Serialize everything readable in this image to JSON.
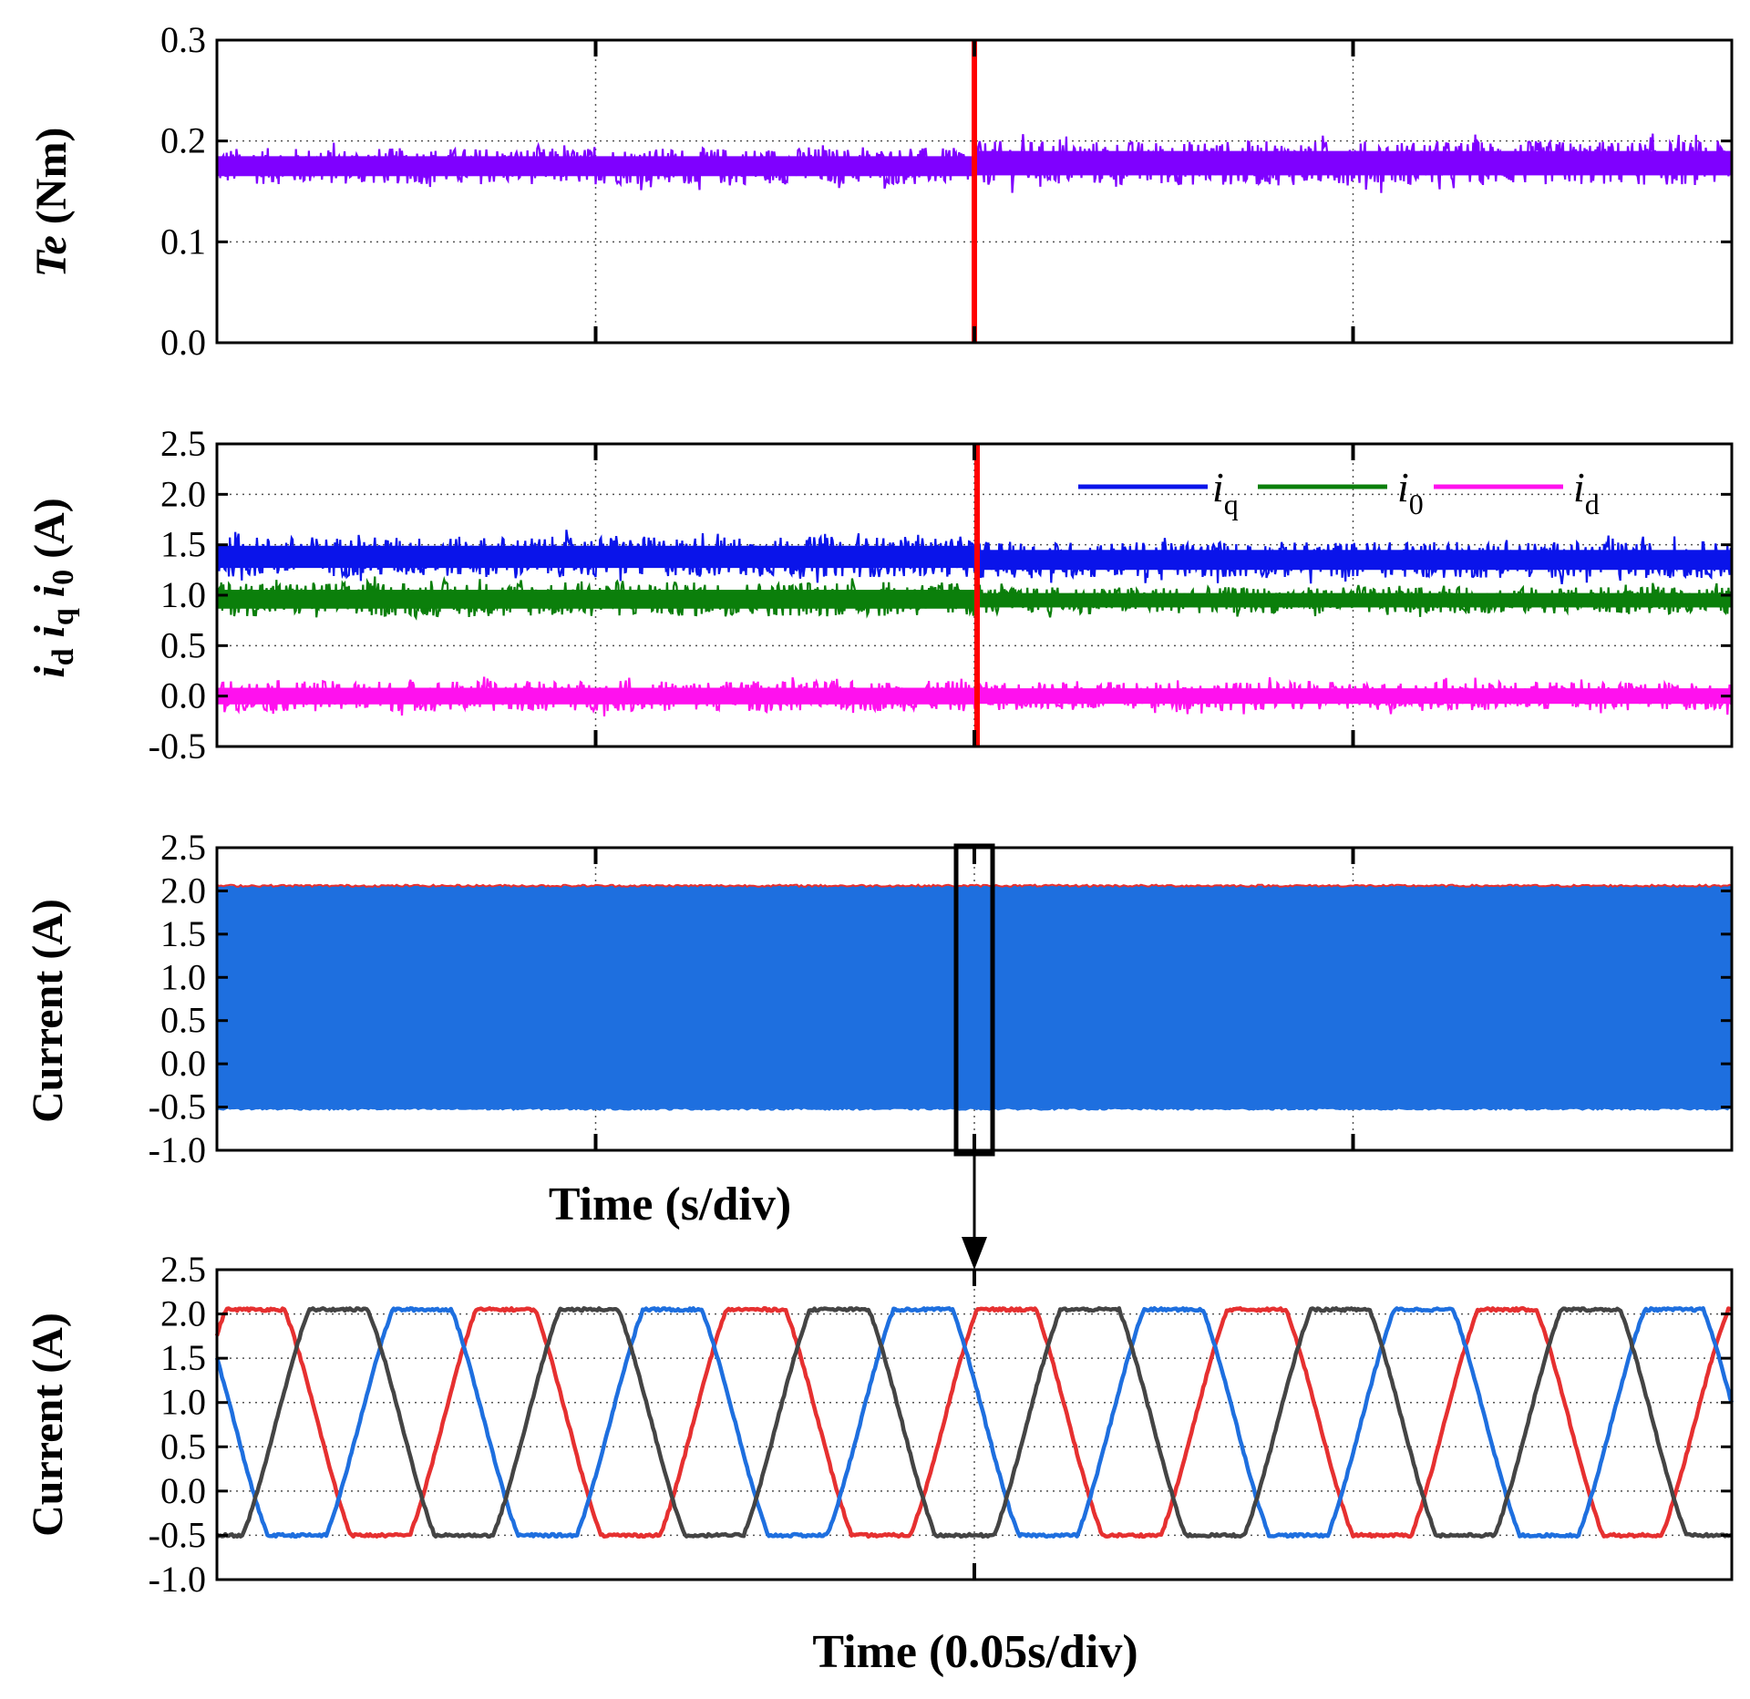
{
  "chart_data": [
    {
      "type": "line",
      "ylabel": {
        "symbol": "Te",
        "unit": "(Nm)"
      },
      "ylim": [
        0.0,
        0.3
      ],
      "yticks": [
        "0.0",
        "0.1",
        "0.2",
        "0.3"
      ],
      "xdivisions": 4,
      "grid": "dotted",
      "step_marker": {
        "color": "#ff0000",
        "at_fraction": 0.5
      },
      "series": [
        {
          "name": "Te",
          "color": "#7f00ff",
          "kind": "noisy_band",
          "center_before": 0.175,
          "center_after": 0.178,
          "half_width_before": 0.018,
          "half_width_after": 0.022,
          "changes_at": 0.5
        }
      ]
    },
    {
      "type": "line",
      "ylabel": {
        "parts": [
          "i",
          "d",
          "i",
          "q",
          "i",
          "0"
        ],
        "unit": "(A)"
      },
      "ylim": [
        -0.5,
        2.5
      ],
      "yticks": [
        "-0.5",
        "0.0",
        "0.5",
        "1.0",
        "1.5",
        "2.0",
        "2.5"
      ],
      "xdivisions": 4,
      "grid": "dotted",
      "step_marker": {
        "color": "#ff0000",
        "at_fraction": 0.5
      },
      "legend": {
        "position": "top-right",
        "items": [
          {
            "label": "i",
            "sub": "q",
            "color": "#0a14ea"
          },
          {
            "label": "i",
            "sub": "0",
            "color": "#0b7f0b"
          },
          {
            "label": "i",
            "sub": "d",
            "color": "#ff11ee"
          }
        ]
      },
      "series": [
        {
          "name": "iq",
          "color": "#0a14ea",
          "kind": "noisy_band",
          "center_before": 1.38,
          "center_after": 1.35,
          "half_width_before": 0.2,
          "half_width_after": 0.18,
          "changes_at": 0.5
        },
        {
          "name": "i0",
          "color": "#0b7f0b",
          "kind": "noisy_band",
          "center_before": 0.96,
          "center_after": 0.95,
          "half_width_before": 0.17,
          "half_width_after": 0.13,
          "changes_at": 0.5
        },
        {
          "name": "id",
          "color": "#ff11ee",
          "kind": "noisy_band",
          "center_before": 0.0,
          "center_after": 0.0,
          "half_width_before": 0.15,
          "half_width_after": 0.14,
          "changes_at": 0.5
        }
      ]
    },
    {
      "type": "line",
      "ylabel": {
        "text": "Current (A)"
      },
      "xlabel": "Time (s/div)",
      "ylim": [
        -1.0,
        2.5
      ],
      "yticks": [
        "-1.0",
        "-0.5",
        "0.0",
        "0.5",
        "1.0",
        "1.5",
        "2.0",
        "2.5"
      ],
      "xdivisions": 4,
      "grid": "dotted",
      "zoom_window": {
        "center_fraction": 0.5,
        "arrow_to": "panel-4"
      },
      "series": [
        {
          "name": "three-phase currents",
          "color": "#1e6fdf",
          "kind": "envelope",
          "min": -0.52,
          "max": 2.06,
          "edge_color": "#e63030"
        }
      ]
    },
    {
      "type": "line",
      "ylabel": {
        "text": "Current (A)"
      },
      "xlabel": "Time (0.05s/div)",
      "ylim": [
        -1.0,
        2.5
      ],
      "yticks": [
        "-1.0",
        "-0.5",
        "0.0",
        "0.5",
        "1.0",
        "1.5",
        "2.0",
        "2.5"
      ],
      "xdivisions": 2,
      "grid": "dotted",
      "waveform": {
        "periods": 6.05,
        "min": -0.5,
        "max": 2.05,
        "phase_shift_deg": 120
      },
      "series": [
        {
          "name": "phase-a",
          "color": "#e63030",
          "phase_deg": 35
        },
        {
          "name": "phase-b",
          "color": "#1e6fdf",
          "phase_deg": 155
        },
        {
          "name": "phase-c",
          "color": "#444444",
          "phase_deg": 275
        }
      ]
    }
  ]
}
